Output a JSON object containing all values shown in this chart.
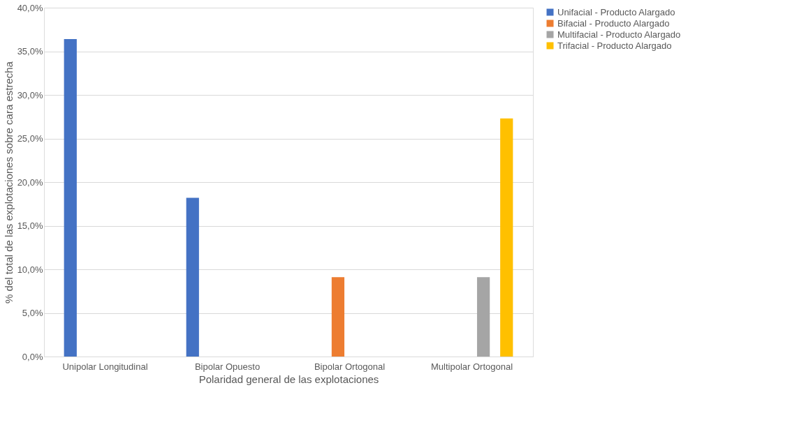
{
  "chart_data": {
    "type": "bar",
    "xlabel": "Polaridad general de las explotaciones",
    "ylabel": "% del total de las explotaciones sobre cara estrecha",
    "categories": [
      "Unipolar Longitudinal",
      "Bipolar Opuesto",
      "Bipolar Ortogonal",
      "Multipolar Ortogonal"
    ],
    "series": [
      {
        "name": "Unifacial - Producto Alargado",
        "color": "#4472c4",
        "values": [
          36.4,
          18.2,
          null,
          null
        ]
      },
      {
        "name": "Bifacial - Producto Alargado",
        "color": "#ed7d31",
        "values": [
          null,
          null,
          9.1,
          null
        ]
      },
      {
        "name": "Multifacial - Producto Alargado",
        "color": "#a5a5a5",
        "values": [
          null,
          null,
          null,
          9.1
        ]
      },
      {
        "name": "Trifacial - Producto Alargado",
        "color": "#ffc000",
        "values": [
          null,
          null,
          null,
          27.3
        ]
      }
    ],
    "ylim": [
      0,
      40
    ],
    "yticks": [
      {
        "value": 0,
        "label": "0,0%"
      },
      {
        "value": 5,
        "label": "5,0%"
      },
      {
        "value": 10,
        "label": "10,0%"
      },
      {
        "value": 15,
        "label": "15,0%"
      },
      {
        "value": 20,
        "label": "20,0%"
      },
      {
        "value": 25,
        "label": "25,0%"
      },
      {
        "value": 30,
        "label": "30,0%"
      },
      {
        "value": 35,
        "label": "35,0%"
      },
      {
        "value": 40,
        "label": "40,0%"
      }
    ],
    "grid": "y",
    "legend": "right"
  }
}
